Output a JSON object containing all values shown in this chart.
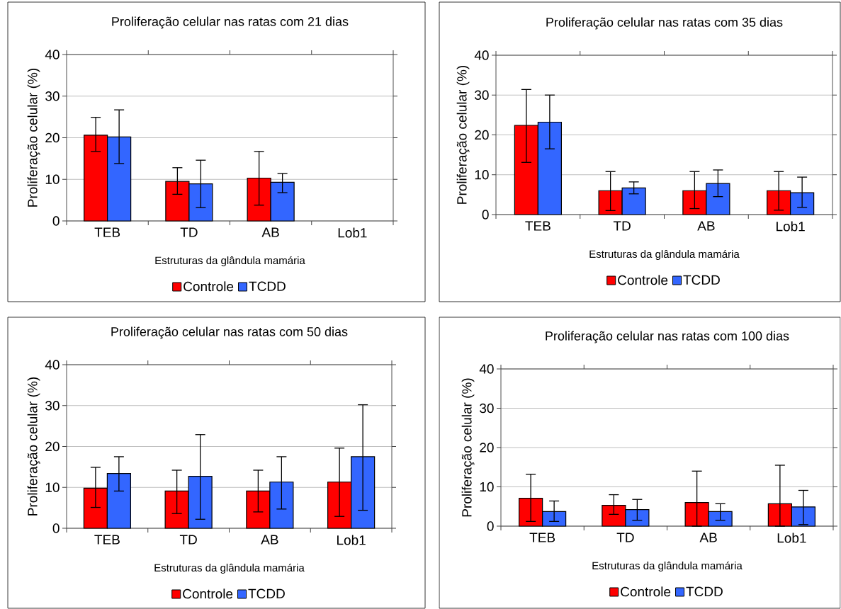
{
  "chart_data": [
    {
      "type": "bar",
      "title": "Proliferação celular nas ratas com 21 dias",
      "xlabel": "Estruturas da glândula mamária",
      "ylabel": "Proliferação celular (%)",
      "categories": [
        "TEB",
        "TD",
        "AB",
        "Lob1"
      ],
      "ylim": [
        0,
        40
      ],
      "yticks": [
        0,
        10,
        20,
        30,
        40
      ],
      "grid": "y",
      "legend": "bottom",
      "series": [
        {
          "name": "Controle",
          "color": "#ff0000",
          "values": [
            20.6,
            9.5,
            10.3,
            null
          ],
          "errors": [
            [
              16.7,
              24.9
            ],
            [
              6.4,
              12.8
            ],
            [
              3.8,
              16.7
            ],
            null
          ]
        },
        {
          "name": "TCDD",
          "color": "#3366ff",
          "values": [
            20.2,
            8.9,
            9.3,
            null
          ],
          "errors": [
            [
              13.8,
              26.7
            ],
            [
              3.2,
              14.6
            ],
            [
              6.8,
              11.4
            ],
            null
          ]
        }
      ]
    },
    {
      "type": "bar",
      "title": "Proliferação celular nas ratas com 35 dias",
      "xlabel": "Estruturas da glândula mamária",
      "ylabel": "Proliferação celular (%)",
      "categories": [
        "TEB",
        "TD",
        "AB",
        "Lob1"
      ],
      "ylim": [
        0,
        40
      ],
      "yticks": [
        0,
        10,
        20,
        30,
        40
      ],
      "grid": "y",
      "legend": "bottom",
      "series": [
        {
          "name": "Controle",
          "color": "#ff0000",
          "values": [
            22.4,
            6.0,
            6.0,
            6.0
          ],
          "errors": [
            [
              13.1,
              31.4
            ],
            [
              1.0,
              10.8
            ],
            [
              1.5,
              10.8
            ],
            [
              1.1,
              10.8
            ]
          ]
        },
        {
          "name": "TCDD",
          "color": "#3366ff",
          "values": [
            23.2,
            6.7,
            7.8,
            5.5
          ],
          "errors": [
            [
              16.5,
              30.0
            ],
            [
              5.2,
              8.2
            ],
            [
              4.5,
              11.2
            ],
            [
              1.8,
              9.4
            ]
          ]
        }
      ]
    },
    {
      "type": "bar",
      "title": "Proliferação celular nas ratas com 50 dias",
      "xlabel": "Estruturas da glândula mamária",
      "ylabel": "Proliferação celular (%)",
      "categories": [
        "TEB",
        "TD",
        "AB",
        "Lob1"
      ],
      "ylim": [
        0,
        40
      ],
      "yticks": [
        0,
        10,
        20,
        30,
        40
      ],
      "grid": "y",
      "legend": "bottom",
      "series": [
        {
          "name": "Controle",
          "color": "#ff0000",
          "values": [
            9.8,
            9.1,
            9.1,
            11.3
          ],
          "errors": [
            [
              5.1,
              14.9
            ],
            [
              3.6,
              14.2
            ],
            [
              4.0,
              14.2
            ],
            [
              2.9,
              19.6
            ]
          ]
        },
        {
          "name": "TCDD",
          "color": "#3366ff",
          "values": [
            13.4,
            12.7,
            11.3,
            17.5
          ],
          "errors": [
            [
              9.1,
              17.5
            ],
            [
              2.2,
              22.9
            ],
            [
              4.7,
              17.5
            ],
            [
              4.4,
              30.2
            ]
          ]
        }
      ]
    },
    {
      "type": "bar",
      "title": "Proliferação celular nas ratas com 100 dias",
      "xlabel": "Estruturas da glândula mamária",
      "ylabel": "Proliferação celular (%)",
      "categories": [
        "TEB",
        "TD",
        "AB",
        "Lob1"
      ],
      "ylim": [
        0,
        40
      ],
      "yticks": [
        0,
        10,
        20,
        30,
        40
      ],
      "grid": "y",
      "legend": "bottom",
      "series": [
        {
          "name": "Controle",
          "color": "#ff0000",
          "values": [
            7.1,
            5.3,
            6.0,
            5.7
          ],
          "errors": [
            [
              1.2,
              13.2
            ],
            [
              3.0,
              8.0
            ],
            [
              0,
              14.0
            ],
            [
              0,
              15.5
            ]
          ]
        },
        {
          "name": "TCDD",
          "color": "#3366ff",
          "values": [
            3.7,
            4.2,
            3.7,
            4.9
          ],
          "errors": [
            [
              1.2,
              6.4
            ],
            [
              1.5,
              6.8
            ],
            [
              1.5,
              5.7
            ],
            [
              0.4,
              9.1
            ]
          ]
        }
      ]
    }
  ]
}
